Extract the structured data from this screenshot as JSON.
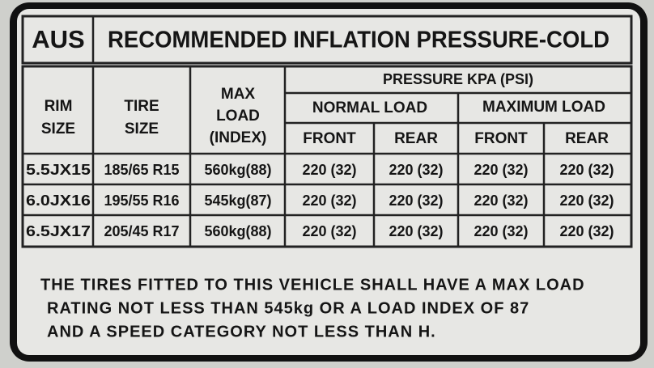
{
  "header": {
    "region": "AUS",
    "title": "RECOMMENDED INFLATION PRESSURE-COLD"
  },
  "table": {
    "headers": {
      "rim_size": [
        "RIM",
        "SIZE"
      ],
      "tire_size": [
        "TIRE",
        "SIZE"
      ],
      "max_load": [
        "MAX",
        "LOAD",
        "(INDEX)"
      ],
      "pressure": "PRESSURE KPA (PSI)",
      "normal_load": "NORMAL LOAD",
      "maximum_load": "MAXIMUM LOAD",
      "axles": [
        "FRONT",
        "REAR",
        "FRONT",
        "REAR"
      ]
    },
    "rows": [
      [
        "5.5JX15",
        "185/65 R15",
        "560kg(88)",
        "220 (32)",
        "220 (32)",
        "220 (32)",
        "220 (32)"
      ],
      [
        "6.0JX16",
        "195/55 R16",
        "545kg(87)",
        "220 (32)",
        "220 (32)",
        "220 (32)",
        "220 (32)"
      ],
      [
        "6.5JX17",
        "205/45 R17",
        "560kg(88)",
        "220 (32)",
        "220 (32)",
        "220 (32)",
        "220 (32)"
      ]
    ]
  },
  "note": [
    "THE TIRES FITTED TO THIS VEHICLE SHALL HAVE A MAX LOAD",
    "RATING NOT LESS THAN 545kg OR A LOAD INDEX OF 87",
    "AND A SPEED CATEGORY NOT LESS THAN H."
  ]
}
